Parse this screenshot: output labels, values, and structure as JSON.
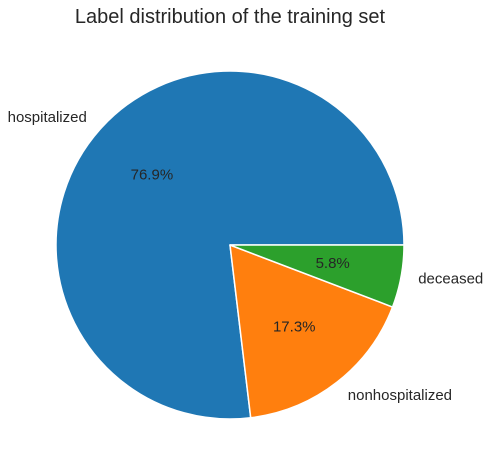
{
  "chart_data": {
    "type": "pie",
    "title": "Label distribution of the training set",
    "slices": [
      {
        "label": "hospitalized",
        "value": 76.9,
        "pct_label": "76.9%",
        "color": "#1f77b4"
      },
      {
        "label": "nonhospitalized",
        "value": 17.3,
        "pct_label": "17.3%",
        "color": "#ff7f0e"
      },
      {
        "label": "deceased",
        "value": 5.8,
        "pct_label": "5.8%",
        "color": "#2ca02c"
      }
    ],
    "start_angle_deg": 0,
    "direction": "counterclockwise"
  }
}
